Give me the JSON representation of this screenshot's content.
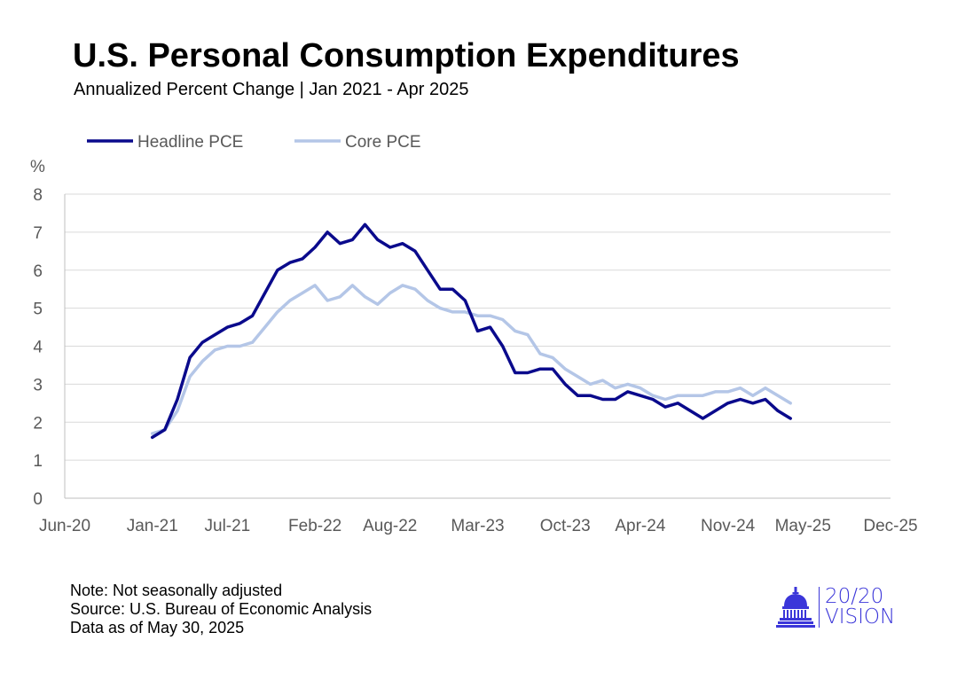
{
  "header": {
    "title": "U.S. Personal Consumption Expenditures",
    "subtitle": "Annualized Percent Change | Jan 2021 - Apr 2025"
  },
  "notes": {
    "note": "Note: Not seasonally adjusted",
    "source": "Source: U.S. Bureau of Economic Analysis",
    "as_of": "Data as of May 30, 2025"
  },
  "logo": {
    "line1": "20/20",
    "line2": "VISION",
    "icon": "capitol-dome-icon",
    "color": "#3b36d9"
  },
  "chart_data": {
    "type": "line",
    "ylabel": "%",
    "ylim": [
      0,
      8
    ],
    "yticks": [
      0,
      1,
      2,
      3,
      4,
      5,
      6,
      7,
      8
    ],
    "grid": true,
    "legend_position": "top-left",
    "x_ticks": [
      "Jun-20",
      "Jan-21",
      "Jul-21",
      "Feb-22",
      "Aug-22",
      "Mar-23",
      "Oct-23",
      "Apr-24",
      "Nov-24",
      "May-25",
      "Dec-25"
    ],
    "x_range": [
      "Jun-20",
      "Dec-25"
    ],
    "x_start": "Jan-21",
    "x_step": "monthly",
    "series": [
      {
        "name": "Headline PCE",
        "color": "#0a0a8c",
        "values": [
          1.6,
          1.8,
          2.6,
          3.7,
          4.1,
          4.3,
          4.5,
          4.6,
          4.8,
          5.4,
          6.0,
          6.2,
          6.3,
          6.6,
          7.0,
          6.7,
          6.8,
          7.2,
          6.8,
          6.6,
          6.7,
          6.5,
          6.0,
          5.5,
          5.5,
          5.2,
          4.4,
          4.5,
          4.0,
          3.3,
          3.3,
          3.4,
          3.4,
          3.0,
          2.7,
          2.7,
          2.6,
          2.6,
          2.8,
          2.7,
          2.6,
          2.4,
          2.5,
          2.3,
          2.1,
          2.3,
          2.5,
          2.6,
          2.5,
          2.6,
          2.3,
          2.1
        ]
      },
      {
        "name": "Core PCE",
        "color": "#b4c6e7",
        "values": [
          1.7,
          1.8,
          2.3,
          3.2,
          3.6,
          3.9,
          4.0,
          4.0,
          4.1,
          4.5,
          4.9,
          5.2,
          5.4,
          5.6,
          5.2,
          5.3,
          5.6,
          5.3,
          5.1,
          5.4,
          5.6,
          5.5,
          5.2,
          5.0,
          4.9,
          4.9,
          4.8,
          4.8,
          4.7,
          4.4,
          4.3,
          3.8,
          3.7,
          3.4,
          3.2,
          3.0,
          3.1,
          2.9,
          3.0,
          2.9,
          2.7,
          2.6,
          2.7,
          2.7,
          2.7,
          2.8,
          2.8,
          2.9,
          2.7,
          2.9,
          2.7,
          2.5
        ]
      }
    ]
  }
}
